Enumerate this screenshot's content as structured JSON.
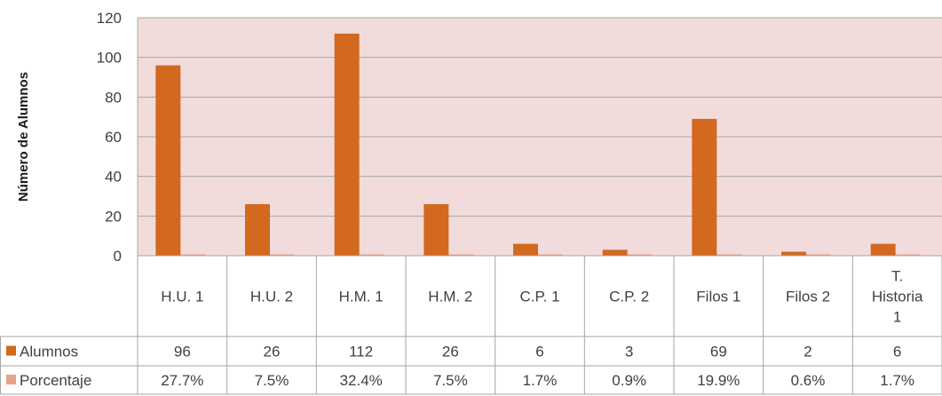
{
  "chart_data": {
    "type": "bar",
    "title": "",
    "xlabel": "",
    "ylabel": "Número de Alumnos",
    "ylim": [
      0,
      120
    ],
    "yticks": [
      0,
      20,
      40,
      60,
      80,
      100,
      120
    ],
    "grid": true,
    "plot_background": "#f2dcdb",
    "categories": [
      [
        "H.U. 1"
      ],
      [
        "H.U. 2"
      ],
      [
        "H.M. 1"
      ],
      [
        "H.M. 2"
      ],
      [
        "C.P. 1"
      ],
      [
        "C.P. 2"
      ],
      [
        "Filos 1"
      ],
      [
        "Filos 2"
      ],
      [
        "T.",
        "Historia",
        "1"
      ]
    ],
    "series": [
      {
        "name": "Alumnos",
        "color": "#d2691e",
        "values": [
          96,
          26,
          112,
          26,
          6,
          3,
          69,
          2,
          6
        ],
        "labels": [
          "96",
          "26",
          "112",
          "26",
          "6",
          "3",
          "69",
          "2",
          "6"
        ]
      },
      {
        "name": "Porcentaje",
        "color": "#e6a58a",
        "values": [
          0.277,
          0.075,
          0.324,
          0.075,
          0.017,
          0.009,
          0.199,
          0.006,
          0.017
        ],
        "labels": [
          "27.7%",
          "7.5%",
          "32.4%",
          "7.5%",
          "1.7%",
          "0.9%",
          "19.9%",
          "0.6%",
          "1.7%"
        ]
      }
    ]
  }
}
